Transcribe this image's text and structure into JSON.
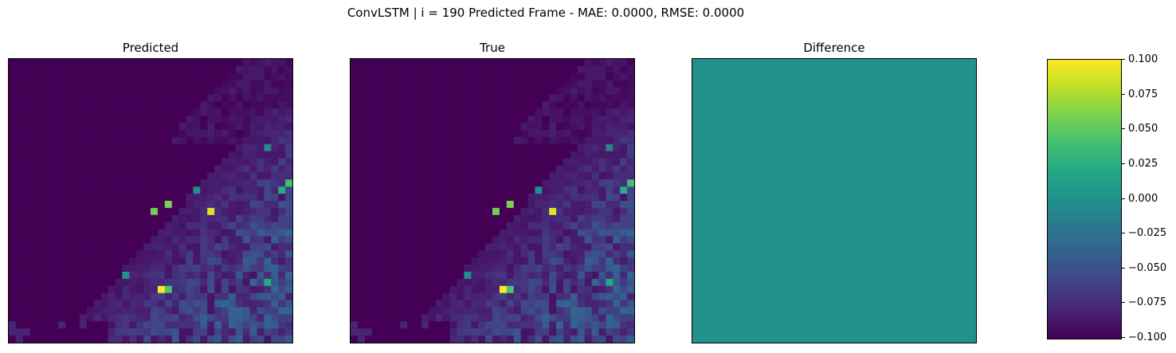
{
  "figure_title": "ConvLSTM | i = 190 Predicted Frame - MAE: 0.0000, RMSE: 0.0000",
  "chart_data": [
    {
      "type": "heatmap",
      "title": "Predicted",
      "colormap": "viridis",
      "grid": false,
      "axes_ticks": false,
      "hotspots": [
        {
          "col": 21,
          "row": 32,
          "value": 1.0
        },
        {
          "col": 22,
          "row": 32,
          "value": 0.72
        },
        {
          "col": 28,
          "row": 21,
          "value": 0.95
        },
        {
          "col": 22,
          "row": 20,
          "value": 0.8
        },
        {
          "col": 20,
          "row": 21,
          "value": 0.78
        },
        {
          "col": 39,
          "row": 17,
          "value": 0.7
        },
        {
          "col": 38,
          "row": 18,
          "value": 0.62
        },
        {
          "col": 36,
          "row": 31,
          "value": 0.6
        },
        {
          "col": 16,
          "row": 30,
          "value": 0.5
        },
        {
          "col": 36,
          "row": 12,
          "value": 0.45
        },
        {
          "col": 26,
          "row": 18,
          "value": 0.48
        }
      ]
    },
    {
      "type": "heatmap",
      "title": "True",
      "colormap": "viridis",
      "grid": false,
      "axes_ticks": false,
      "hotspots": [
        {
          "col": 21,
          "row": 32,
          "value": 1.0
        },
        {
          "col": 22,
          "row": 32,
          "value": 0.72
        },
        {
          "col": 28,
          "row": 21,
          "value": 0.95
        },
        {
          "col": 22,
          "row": 20,
          "value": 0.8
        },
        {
          "col": 20,
          "row": 21,
          "value": 0.78
        },
        {
          "col": 39,
          "row": 17,
          "value": 0.7
        },
        {
          "col": 38,
          "row": 18,
          "value": 0.62
        },
        {
          "col": 36,
          "row": 31,
          "value": 0.6
        },
        {
          "col": 16,
          "row": 30,
          "value": 0.5
        },
        {
          "col": 36,
          "row": 12,
          "value": 0.45
        },
        {
          "col": 26,
          "row": 18,
          "value": 0.48
        }
      ]
    },
    {
      "type": "heatmap",
      "title": "Difference",
      "colormap": "viridis",
      "uniform_value": 0.0,
      "fill_color": "#21918c",
      "grid": false,
      "axes_ticks": false
    }
  ],
  "colorbar": {
    "range": [
      -0.1,
      0.1
    ],
    "ticks": [
      "0.100",
      "0.075",
      "0.050",
      "0.025",
      "0.000",
      "−0.025",
      "−0.050",
      "−0.075",
      "−0.100"
    ]
  },
  "colors": {
    "low": "#440154",
    "mid": "#21918c",
    "high": "#fde725"
  }
}
